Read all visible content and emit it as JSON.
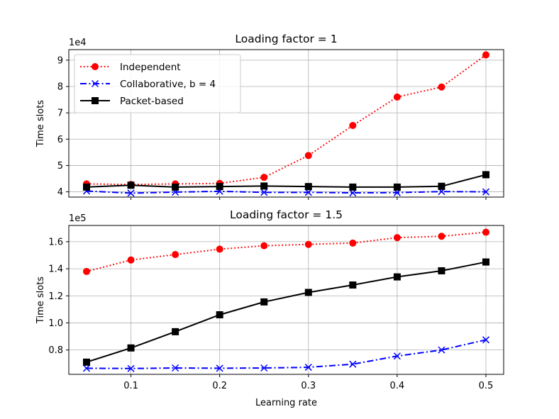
{
  "chart_data": [
    {
      "type": "line",
      "title": "Loading factor = 1",
      "xlabel": "",
      "ylabel": "Time slots",
      "y_offset_label": "1e4",
      "y_scale": 10000,
      "xlim": [
        0.03,
        0.52
      ],
      "ylim": [
        3.8,
        9.4
      ],
      "yticks": [
        4,
        5,
        6,
        7,
        8,
        9
      ],
      "ytick_labels": [
        "4",
        "5",
        "6",
        "7",
        "8",
        "9"
      ],
      "grid": true,
      "legend_position": "upper left",
      "x": [
        0.05,
        0.1,
        0.15,
        0.2,
        0.25,
        0.3,
        0.35,
        0.4,
        0.45,
        0.5
      ],
      "series": [
        {
          "name": "Independent",
          "color": "#ff0000",
          "style": "dotted",
          "marker": "circle",
          "values": [
            4.3,
            4.28,
            4.3,
            4.32,
            4.55,
            5.38,
            6.52,
            7.6,
            7.98,
            9.2
          ]
        },
        {
          "name": "Collaborative, b = 4",
          "color": "#0000ff",
          "style": "dashdot",
          "marker": "x",
          "values": [
            4.03,
            3.95,
            3.99,
            4.02,
            3.98,
            3.98,
            3.96,
            3.97,
            4.01,
            4.0
          ]
        },
        {
          "name": "Packet-based",
          "color": "#000000",
          "style": "solid",
          "marker": "square",
          "values": [
            4.18,
            4.25,
            4.18,
            4.2,
            4.22,
            4.2,
            4.18,
            4.18,
            4.21,
            4.65
          ]
        }
      ]
    },
    {
      "type": "line",
      "title": "Loading factor = 1.5",
      "xlabel": "Learning rate",
      "ylabel": "Time slots",
      "y_offset_label": "1e5",
      "y_scale": 100000,
      "xlim": [
        0.03,
        0.52
      ],
      "ylim": [
        0.62,
        1.72
      ],
      "yticks": [
        0.8,
        1.0,
        1.2,
        1.4,
        1.6
      ],
      "ytick_labels": [
        "0.8",
        "1.0",
        "1.2",
        "1.4",
        "1.6"
      ],
      "xticks": [
        0.1,
        0.2,
        0.3,
        0.4,
        0.5
      ],
      "xtick_labels": [
        "0.1",
        "0.2",
        "0.3",
        "0.4",
        "0.5"
      ],
      "grid": true,
      "x": [
        0.05,
        0.1,
        0.15,
        0.2,
        0.25,
        0.3,
        0.35,
        0.4,
        0.45,
        0.5
      ],
      "series": [
        {
          "name": "Independent",
          "color": "#ff0000",
          "style": "dotted",
          "marker": "circle",
          "values": [
            1.38,
            1.465,
            1.505,
            1.545,
            1.57,
            1.58,
            1.59,
            1.63,
            1.64,
            1.67
          ]
        },
        {
          "name": "Collaborative, b = 4",
          "color": "#0000ff",
          "style": "dashdot",
          "marker": "x",
          "values": [
            0.665,
            0.663,
            0.667,
            0.665,
            0.667,
            0.672,
            0.695,
            0.755,
            0.8,
            0.875
          ]
        },
        {
          "name": "Packet-based",
          "color": "#000000",
          "style": "solid",
          "marker": "square",
          "values": [
            0.71,
            0.815,
            0.935,
            1.06,
            1.155,
            1.225,
            1.28,
            1.34,
            1.385,
            1.45
          ]
        }
      ]
    }
  ]
}
